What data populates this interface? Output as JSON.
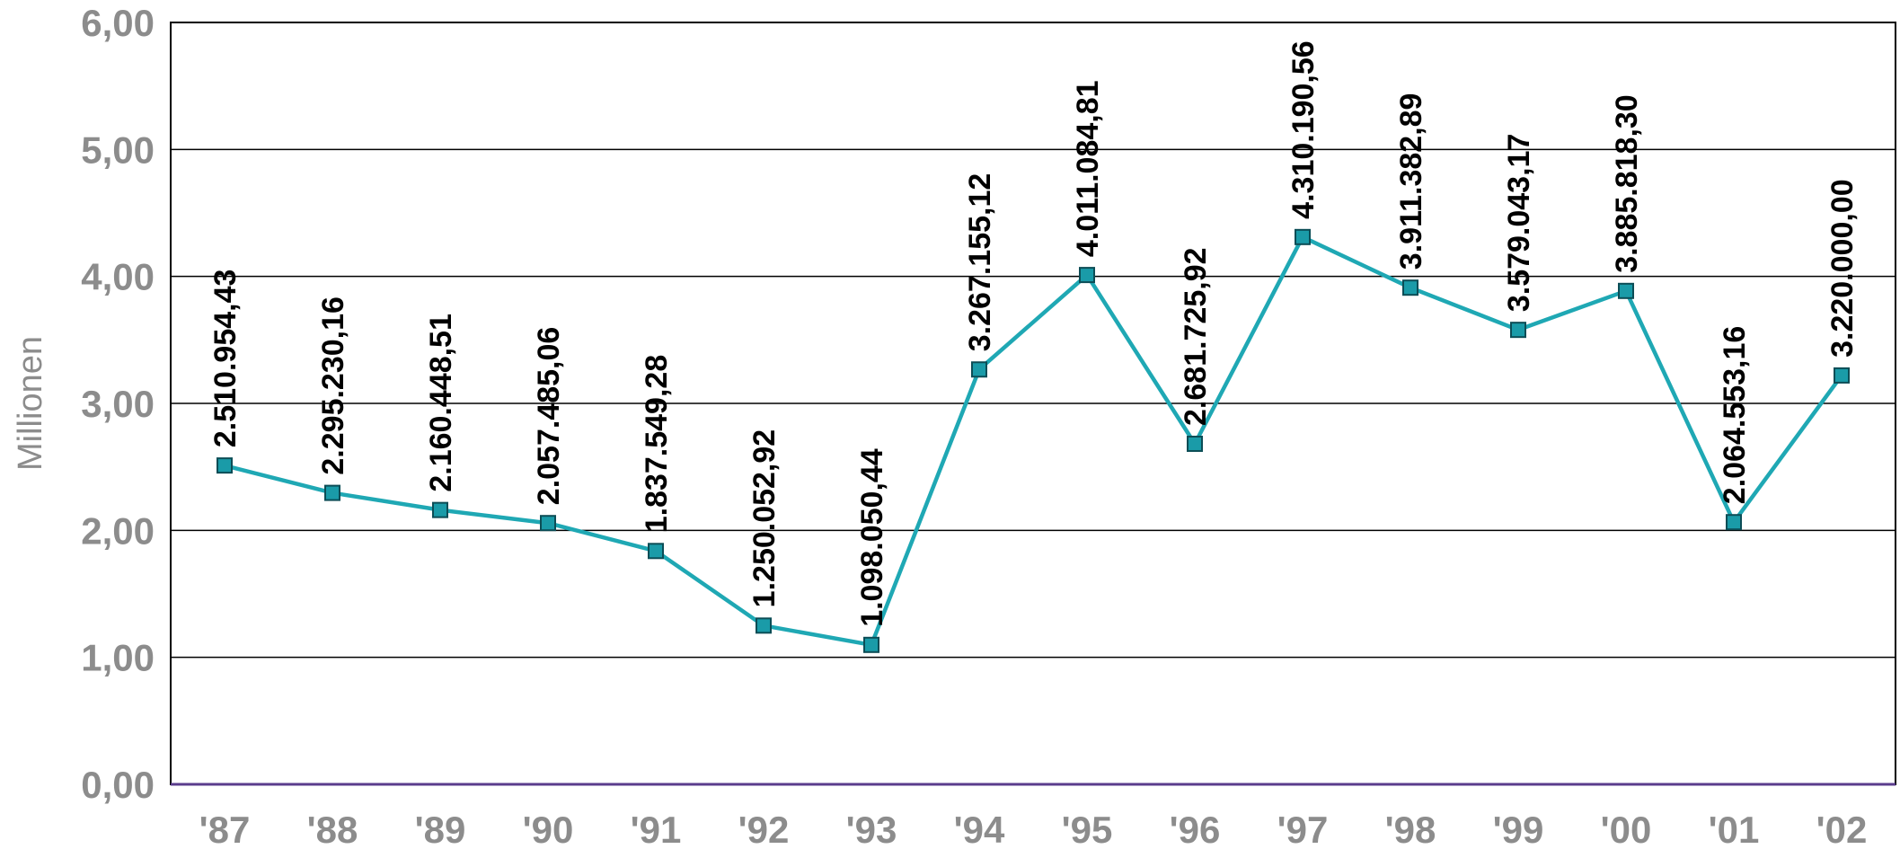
{
  "chart_data": {
    "type": "line",
    "ylabel": "Millionen",
    "xlabel": "",
    "ylim": [
      0,
      6
    ],
    "yticks": [
      0,
      1,
      2,
      3,
      4,
      5,
      6
    ],
    "ytick_labels": [
      "0,00",
      "1,00",
      "2,00",
      "3,00",
      "4,00",
      "5,00",
      "6,00"
    ],
    "grid": "horizontal",
    "categories": [
      "'87",
      "'88",
      "'89",
      "'90",
      "'91",
      "'92",
      "'93",
      "'94",
      "'95",
      "'96",
      "'97",
      "'98",
      "'99",
      "'00",
      "'01",
      "'02"
    ],
    "series": [
      {
        "values": [
          2510954.43,
          2295230.16,
          2160448.51,
          2057485.06,
          1837549.28,
          1250052.92,
          1098050.44,
          3267155.12,
          4011084.81,
          2681725.92,
          4310190.56,
          3911382.89,
          3579043.17,
          3885818.3,
          2064553.16,
          3220000.0
        ],
        "data_labels": [
          "2.510.954,43",
          "2.295.230,16",
          "2.160.448,51",
          "2.057.485,06",
          "1.837.549,28",
          "1.250.052,92",
          "1.098.050,44",
          "3.267.155,12",
          "4.011.084,81",
          "2.681.725,92",
          "4.310.190,56",
          "3.911.382,89",
          "3.579.043,17",
          "3.885.818,30",
          "2.064.553,16",
          "3.220.000,00"
        ],
        "color": "#1fa8b4",
        "marker_color": "#1a9ba8"
      }
    ]
  }
}
